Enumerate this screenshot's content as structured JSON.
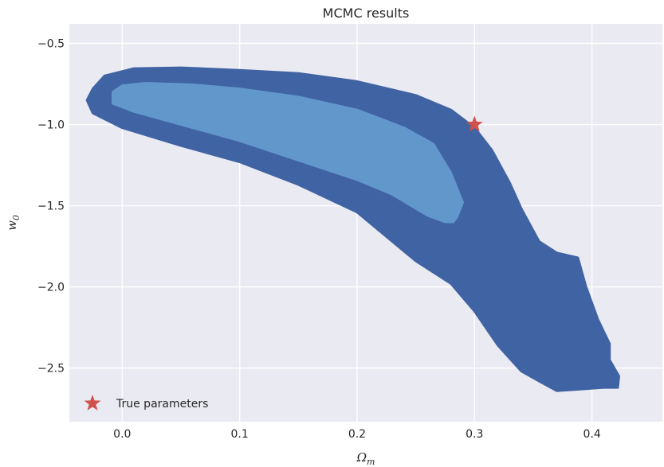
{
  "chart_data": {
    "type": "contour",
    "title": "MCMC results",
    "xlabel": "Ω_m",
    "ylabel": "w_0",
    "xlim": [
      -0.045,
      0.46
    ],
    "ylim": [
      -2.83,
      -0.38
    ],
    "x_ticks": [
      0.0,
      0.1,
      0.2,
      0.3,
      0.4
    ],
    "x_tick_labels": [
      "0.0",
      "0.1",
      "0.2",
      "0.3",
      "0.4"
    ],
    "y_ticks": [
      -0.5,
      -1.0,
      -1.5,
      -2.0,
      -2.5
    ],
    "y_tick_labels": [
      "−0.5",
      "−1.0",
      "−1.5",
      "−2.0",
      "−2.5"
    ],
    "grid": true,
    "legend_position": "lower-left",
    "colors": {
      "background": "#eaeaf2",
      "grid": "#ffffff",
      "outer_region": "#4063a3",
      "inner_region": "#6297cb",
      "marker": "#d0504a"
    },
    "regions": [
      {
        "level": "outer",
        "boundary": [
          [
            -0.025,
            -0.78
          ],
          [
            -0.015,
            -0.7
          ],
          [
            0.01,
            -0.655
          ],
          [
            0.05,
            -0.65
          ],
          [
            0.1,
            -0.665
          ],
          [
            0.15,
            -0.685
          ],
          [
            0.2,
            -0.735
          ],
          [
            0.25,
            -0.82
          ],
          [
            0.28,
            -0.91
          ],
          [
            0.3,
            -1.02
          ],
          [
            0.315,
            -1.16
          ],
          [
            0.33,
            -1.36
          ],
          [
            0.34,
            -1.52
          ],
          [
            0.355,
            -1.72
          ],
          [
            0.37,
            -1.79
          ],
          [
            0.388,
            -1.82
          ],
          [
            0.395,
            -2.0
          ],
          [
            0.405,
            -2.2
          ],
          [
            0.415,
            -2.35
          ],
          [
            0.415,
            -2.45
          ],
          [
            0.423,
            -2.55
          ],
          [
            0.422,
            -2.62
          ],
          [
            0.41,
            -2.62
          ],
          [
            0.39,
            -2.63
          ],
          [
            0.37,
            -2.64
          ],
          [
            0.355,
            -2.58
          ],
          [
            0.34,
            -2.52
          ],
          [
            0.32,
            -2.36
          ],
          [
            0.3,
            -2.15
          ],
          [
            0.28,
            -1.98
          ],
          [
            0.25,
            -1.84
          ],
          [
            0.2,
            -1.54
          ],
          [
            0.15,
            -1.37
          ],
          [
            0.1,
            -1.23
          ],
          [
            0.05,
            -1.13
          ],
          [
            0.0,
            -1.02
          ],
          [
            -0.025,
            -0.93
          ],
          [
            -0.03,
            -0.85
          ]
        ]
      },
      {
        "level": "inner",
        "boundary": [
          [
            -0.008,
            -0.8
          ],
          [
            0.0,
            -0.76
          ],
          [
            0.02,
            -0.745
          ],
          [
            0.06,
            -0.755
          ],
          [
            0.1,
            -0.78
          ],
          [
            0.15,
            -0.83
          ],
          [
            0.2,
            -0.91
          ],
          [
            0.24,
            -1.02
          ],
          [
            0.265,
            -1.12
          ],
          [
            0.28,
            -1.3
          ],
          [
            0.29,
            -1.48
          ],
          [
            0.285,
            -1.57
          ],
          [
            0.282,
            -1.6
          ],
          [
            0.275,
            -1.6
          ],
          [
            0.26,
            -1.56
          ],
          [
            0.23,
            -1.43
          ],
          [
            0.2,
            -1.34
          ],
          [
            0.15,
            -1.22
          ],
          [
            0.1,
            -1.1
          ],
          [
            0.05,
            -1.0
          ],
          [
            0.01,
            -0.92
          ],
          [
            -0.008,
            -0.87
          ]
        ]
      }
    ],
    "series": [
      {
        "name": "True parameters",
        "type": "scatter",
        "marker": "star",
        "x": [
          0.3
        ],
        "y": [
          -1.0
        ]
      }
    ]
  }
}
